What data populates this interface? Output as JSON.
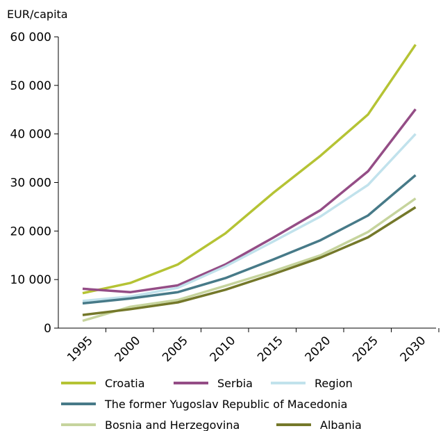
{
  "chart_data": {
    "type": "line",
    "unit_label": "EUR/capita",
    "x": [
      "1995",
      "2000",
      "2005",
      "2010",
      "2015",
      "2020",
      "2025",
      "2030"
    ],
    "ylim": [
      0,
      60000
    ],
    "yticks": [
      {
        "value": 0,
        "label": "0"
      },
      {
        "value": 10000,
        "label": "10 000"
      },
      {
        "value": 20000,
        "label": "20 000"
      },
      {
        "value": 30000,
        "label": "30 000"
      },
      {
        "value": 40000,
        "label": "40 000"
      },
      {
        "value": 50000,
        "label": "50 000"
      },
      {
        "value": 60000,
        "label": "60 000"
      }
    ],
    "grid": false,
    "legend_position": "bottom",
    "series": [
      {
        "name": "Croatia",
        "color": "#b5c334",
        "values": [
          7200,
          9300,
          13100,
          19500,
          27800,
          35500,
          44000,
          58400
        ]
      },
      {
        "name": "Serbia",
        "color": "#944d86",
        "values": [
          8100,
          7400,
          8800,
          13100,
          18600,
          24300,
          32300,
          45100
        ]
      },
      {
        "name": "Region",
        "color": "#c1e2ec",
        "values": [
          5600,
          6500,
          8300,
          12700,
          17800,
          23000,
          29500,
          40000
        ]
      },
      {
        "name": "The former Yugoslav Republic of Macedonia",
        "color": "#477a88",
        "values": [
          5100,
          6100,
          7400,
          10300,
          14100,
          18100,
          23200,
          31500
        ]
      },
      {
        "name": "Bosnia and Herzegovina",
        "color": "#c6d49d",
        "values": [
          1500,
          4400,
          5800,
          8700,
          11700,
          15000,
          19800,
          26700
        ]
      },
      {
        "name": "Albania",
        "color": "#74782a",
        "values": [
          2700,
          3900,
          5300,
          7900,
          11100,
          14500,
          18700,
          24900
        ]
      }
    ]
  }
}
